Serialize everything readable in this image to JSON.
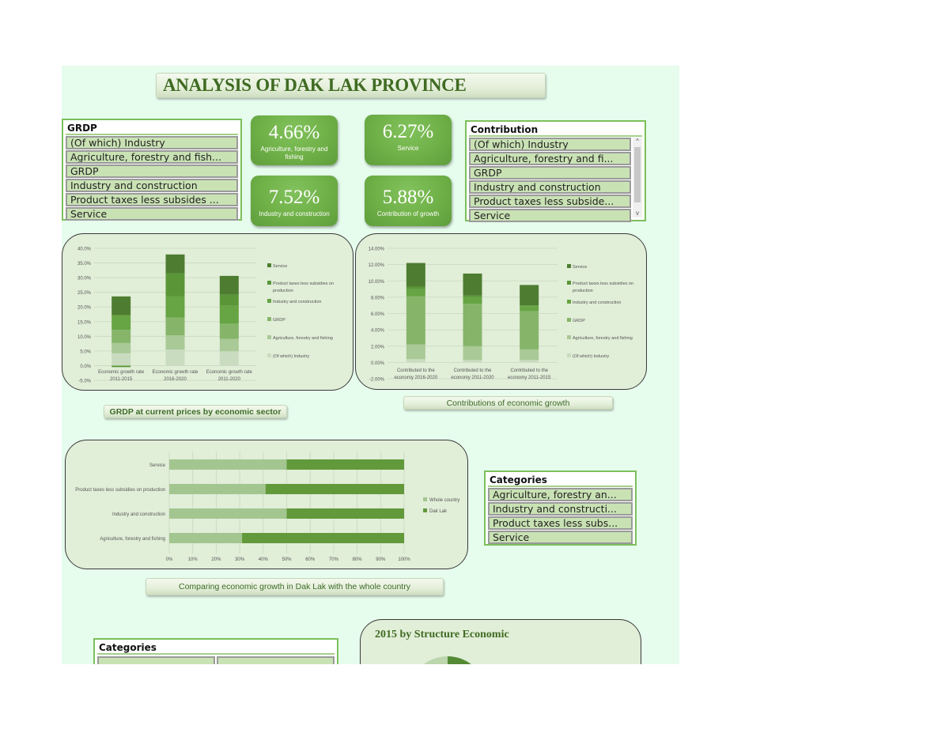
{
  "header": {
    "title": "ANALYSIS OF DAK LAK PROVINCE"
  },
  "colors": {
    "background": "#e6fced",
    "card_bg": "#e1eed8",
    "kpi_green": "#6fb047",
    "title_text": "#3f6b22",
    "slicer_item": "#c9e2b4",
    "series": {
      "of_which_industry": "#c9dcc0",
      "agriculture": "#a9c996",
      "grdp": "#86b56a",
      "industry_construction": "#67a443",
      "product_taxes": "#5a9638",
      "service": "#4e7d31",
      "whole_country": "#a3c690",
      "dak_lak": "#62993a"
    }
  },
  "slicer_grdp": {
    "title": "GRDP",
    "items": [
      "(Of which) Industry",
      "Agriculture, forestry and fish...",
      "GRDP",
      "Industry and construction",
      "Product taxes less subsides ...",
      "Service"
    ]
  },
  "slicer_contribution": {
    "title": "Contribution",
    "items": [
      "(Of which) Industry",
      "Agriculture, forestry and fi...",
      "GRDP",
      "Industry and construction",
      "Product taxes less subside...",
      "Service"
    ],
    "scroll_up": "^",
    "scroll_down": "v"
  },
  "slicer_categories": {
    "title": "Categories",
    "items": [
      "Agriculture, forestry an...",
      "Industry and constructi...",
      "Product taxes less subs...",
      "Service"
    ]
  },
  "slicer_categories_2": {
    "title": "Categories"
  },
  "kpis": [
    {
      "value": "4.66%",
      "label": "Agriculture, forestry and fishing"
    },
    {
      "value": "6.27%",
      "label": "Service"
    },
    {
      "value": "7.52%",
      "label": "Industry and construction"
    },
    {
      "value": "5.88%",
      "label": "Contribution of growth"
    }
  ],
  "captions": {
    "chart1": "GRDP at current prices by economic sector",
    "chart2": "Contributions of economic growth",
    "chart3": "Comparing economic growth in Dak Lak with the whole country"
  },
  "pie_title": "2015 by Structure Economic",
  "chart_data": [
    {
      "type": "bar",
      "stacked": true,
      "title": "GRDP at current prices by economic sector",
      "categories": [
        "Economic growth rate 2011-2015",
        "Economic growth rate 2016-2020",
        "Economic growth rate 2011-2020"
      ],
      "category_lines": [
        [
          "Economic growth rate",
          "2011-2015"
        ],
        [
          "Economic growth rate",
          "2016-2020"
        ],
        [
          "Economic growth rate",
          "2011-2020"
        ]
      ],
      "series": [
        {
          "name": "(Of which) Industry",
          "values": [
            4.2,
            5.5,
            4.9
          ]
        },
        {
          "name": "Agriculture, forestry and fishing",
          "values": [
            3.5,
            4.8,
            4.2
          ]
        },
        {
          "name": "GRDP",
          "values": [
            4.5,
            6.1,
            5.2
          ]
        },
        {
          "name": "Industry and construction",
          "values": [
            5.0,
            7.3,
            6.1
          ]
        },
        {
          "name": "Product taxes less subsidies on production",
          "values": [
            -0.5,
            7.8,
            3.8
          ]
        },
        {
          "name": "Service",
          "values": [
            6.4,
            6.4,
            6.4
          ]
        }
      ],
      "legend": [
        "Service",
        "Product taxes less subsidies on production",
        "Industry and construction",
        "GRDP",
        "Agriculture, forestry and fishing",
        "(Of which) Industry"
      ],
      "yticks": [
        "40.0%",
        "35.0%",
        "30.0%",
        "25.0%",
        "20.0%",
        "15.0%",
        "10.0%",
        "5.0%",
        "0.0%",
        "-5.0%"
      ],
      "ylim": [
        -5,
        40
      ],
      "ylabel": "",
      "xlabel": "",
      "legend_position": "right",
      "grid": true
    },
    {
      "type": "bar",
      "stacked": true,
      "title": "Contributions of economic growth",
      "categories": [
        "Contributed to the economy 2016-2020",
        "Contributed to the economy 2011-2020",
        "Contributed to the economy 2011-2015"
      ],
      "category_lines": [
        [
          "Contributed to the",
          "economy 2016-2020"
        ],
        [
          "Contributed to the",
          "economy 2011-2020"
        ],
        [
          "Contributed to the",
          "economy 2011-2015"
        ]
      ],
      "series": [
        {
          "name": "(Of which) Industry",
          "values": [
            0.4,
            0.3,
            0.3
          ]
        },
        {
          "name": "Agriculture, forestry and fishing",
          "values": [
            1.8,
            1.7,
            1.3
          ]
        },
        {
          "name": "GRDP",
          "values": [
            5.9,
            5.2,
            4.7
          ]
        },
        {
          "name": "Industry and construction",
          "values": [
            0.9,
            0.8,
            0.6
          ]
        },
        {
          "name": "Product taxes less subsidies on production",
          "values": [
            0.3,
            0.2,
            0.1
          ]
        },
        {
          "name": "Service",
          "values": [
            2.9,
            2.7,
            2.5
          ]
        }
      ],
      "legend": [
        "Service",
        "Product taxes less subsidies on production",
        "Industry and construction",
        "GRDP",
        "Agriculture, forestry and fishing",
        "(Of which) Industry"
      ],
      "yticks": [
        "14.00%",
        "12.00%",
        "10.00%",
        "8.00%",
        "6.00%",
        "4.00%",
        "2.00%",
        "0.00%",
        "-2.00%"
      ],
      "ylim": [
        -2,
        14
      ],
      "legend_position": "right",
      "grid": true
    },
    {
      "type": "bar",
      "orientation": "horizontal",
      "stacked_percent": true,
      "title": "Comparing economic growth in Dak Lak with the whole country",
      "categories": [
        "Service",
        "Product taxes less subsidies on production",
        "Industry and construction",
        "Agriculture, forestry and fishing"
      ],
      "series": [
        {
          "name": "Whole country",
          "values": [
            50,
            41,
            50,
            31
          ]
        },
        {
          "name": "Dak Lak",
          "values": [
            50,
            59,
            50,
            69
          ]
        }
      ],
      "xticks": [
        "0%",
        "10%",
        "20%",
        "30%",
        "40%",
        "50%",
        "60%",
        "70%",
        "80%",
        "90%",
        "100%"
      ],
      "xlim": [
        0,
        100
      ],
      "legend_position": "right",
      "grid": true
    }
  ]
}
